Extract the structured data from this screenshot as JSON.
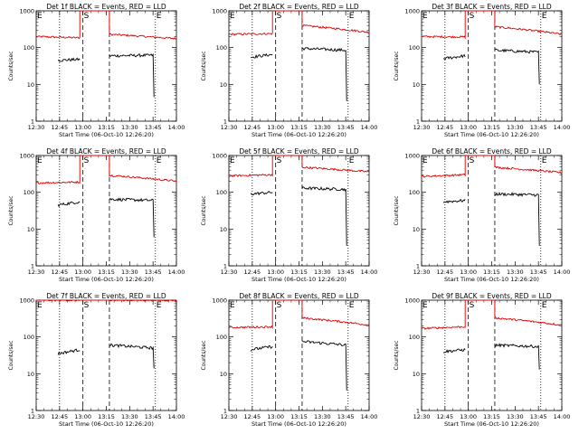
{
  "colors": {
    "events": "#000000",
    "lld": "#dd0000",
    "axis": "#000000"
  },
  "marker_labels": {
    "start": "S",
    "end": "E"
  },
  "chart_data": [
    {
      "type": "line",
      "title": "Det 1f BLACK = Events, RED = LLD",
      "xlabel": "Start Time (06-Oct-10 12:26:20)",
      "ylabel": "Counts/sec",
      "yscale": "log",
      "ylim": [
        1,
        1000
      ],
      "y_ticks": [
        1,
        10,
        100,
        1000
      ],
      "y_tick_labels": [
        "1",
        "10",
        "100",
        "1000"
      ],
      "xlim_minutes": [
        750,
        840
      ],
      "x_ticks": [
        750,
        765,
        780,
        795,
        810,
        825,
        840
      ],
      "x_tick_labels": [
        "12:30",
        "12:45",
        "13:00",
        "13:15",
        "13:30",
        "13:45",
        "14:00"
      ],
      "dotted_lines": [
        765,
        826.5
      ],
      "dashed_lines": [
        780,
        797
      ],
      "lld": {
        "segments": [
          [
            750,
            778,
            200,
            185
          ],
          [
            778,
            797,
            1000,
            1000
          ],
          [
            797,
            840,
            230,
            175
          ]
        ]
      },
      "events": {
        "segments": [
          [
            764,
            778,
            45,
            48
          ],
          [
            797,
            825,
            60,
            62
          ]
        ],
        "tail_end": 4.5
      }
    },
    {
      "type": "line",
      "title": "Det 2f BLACK = Events, RED = LLD",
      "xlabel": "Start Time (06-Oct-10 12:26:20)",
      "ylabel": "Counts/sec",
      "yscale": "log",
      "ylim": [
        1,
        1000
      ],
      "y_ticks": [
        1,
        10,
        100,
        1000
      ],
      "y_tick_labels": [
        "1",
        "10",
        "100",
        "1000"
      ],
      "xlim_minutes": [
        750,
        840
      ],
      "x_ticks": [
        750,
        765,
        780,
        795,
        810,
        825,
        840
      ],
      "x_tick_labels": [
        "12:30",
        "12:45",
        "13:00",
        "13:15",
        "13:30",
        "13:45",
        "14:00"
      ],
      "dotted_lines": [
        765,
        826.5
      ],
      "dashed_lines": [
        780,
        797
      ],
      "lld": {
        "segments": [
          [
            750,
            778,
            230,
            240
          ],
          [
            778,
            797,
            1000,
            1000
          ],
          [
            797,
            840,
            400,
            260
          ]
        ]
      },
      "events": {
        "segments": [
          [
            764,
            778,
            55,
            65
          ],
          [
            797,
            825,
            95,
            85
          ]
        ],
        "tail_end": 3.5
      }
    },
    {
      "type": "line",
      "title": "Det 3f BLACK = Events, RED = LLD",
      "xlabel": "Start Time (06-Oct-10 12:26:20)",
      "ylabel": "Counts/sec",
      "yscale": "log",
      "ylim": [
        1,
        1000
      ],
      "y_ticks": [
        1,
        10,
        100,
        1000
      ],
      "y_tick_labels": [
        "1",
        "10",
        "100",
        "1000"
      ],
      "xlim_minutes": [
        750,
        840
      ],
      "x_ticks": [
        750,
        765,
        780,
        795,
        810,
        825,
        840
      ],
      "x_tick_labels": [
        "12:30",
        "12:45",
        "13:00",
        "13:15",
        "13:30",
        "13:45",
        "14:00"
      ],
      "dotted_lines": [
        765,
        826.5
      ],
      "dashed_lines": [
        780,
        797
      ],
      "lld": {
        "segments": [
          [
            750,
            778,
            200,
            195
          ],
          [
            778,
            797,
            1000,
            1000
          ],
          [
            797,
            840,
            370,
            230
          ]
        ]
      },
      "events": {
        "segments": [
          [
            764,
            778,
            50,
            60
          ],
          [
            797,
            825,
            85,
            75
          ]
        ],
        "tail_end": 10
      }
    },
    {
      "type": "line",
      "title": "Det 4f BLACK = Events, RED = LLD",
      "xlabel": "Start Time (06-Oct-10 12:26:20)",
      "ylabel": "Counts/sec",
      "yscale": "log",
      "ylim": [
        1,
        1000
      ],
      "y_ticks": [
        1,
        10,
        100,
        1000
      ],
      "y_tick_labels": [
        "1",
        "10",
        "100",
        "1000"
      ],
      "xlim_minutes": [
        750,
        840
      ],
      "x_ticks": [
        750,
        765,
        780,
        795,
        810,
        825,
        840
      ],
      "x_tick_labels": [
        "12:30",
        "12:45",
        "13:00",
        "13:15",
        "13:30",
        "13:45",
        "14:00"
      ],
      "dotted_lines": [
        765,
        826.5
      ],
      "dashed_lines": [
        780,
        797
      ],
      "lld": {
        "segments": [
          [
            750,
            778,
            180,
            190
          ],
          [
            778,
            797,
            1000,
            1000
          ],
          [
            797,
            840,
            290,
            200
          ]
        ]
      },
      "events": {
        "segments": [
          [
            764,
            778,
            45,
            55
          ],
          [
            797,
            825,
            65,
            60
          ]
        ],
        "tail_end": 6
      }
    },
    {
      "type": "line",
      "title": "Det 5f BLACK = Events, RED = LLD",
      "xlabel": "Start Time (06-Oct-10 12:26:20)",
      "ylabel": "Counts/sec",
      "yscale": "log",
      "ylim": [
        1,
        1000
      ],
      "y_ticks": [
        1,
        10,
        100,
        1000
      ],
      "y_tick_labels": [
        "1",
        "10",
        "100",
        "1000"
      ],
      "xlim_minutes": [
        750,
        840
      ],
      "x_ticks": [
        750,
        765,
        780,
        795,
        810,
        825,
        840
      ],
      "x_tick_labels": [
        "12:30",
        "12:45",
        "13:00",
        "13:15",
        "13:30",
        "13:45",
        "14:00"
      ],
      "dotted_lines": [
        765,
        826.5
      ],
      "dashed_lines": [
        780,
        797
      ],
      "lld": {
        "segments": [
          [
            750,
            778,
            280,
            300
          ],
          [
            778,
            797,
            1000,
            1000
          ],
          [
            797,
            840,
            480,
            360
          ]
        ]
      },
      "events": {
        "segments": [
          [
            764,
            778,
            90,
            100
          ],
          [
            797,
            825,
            130,
            120
          ]
        ],
        "tail_end": 3.5
      }
    },
    {
      "type": "line",
      "title": "Det 6f BLACK = Events, RED = LLD",
      "xlabel": "Start Time (06-Oct-10 12:26:20)",
      "ylabel": "Counts/sec",
      "yscale": "log",
      "ylim": [
        1,
        1000
      ],
      "y_ticks": [
        1,
        10,
        100,
        1000
      ],
      "y_tick_labels": [
        "1",
        "10",
        "100",
        "1000"
      ],
      "xlim_minutes": [
        750,
        840
      ],
      "x_ticks": [
        750,
        765,
        780,
        795,
        810,
        825,
        840
      ],
      "x_tick_labels": [
        "12:30",
        "12:45",
        "13:00",
        "13:15",
        "13:30",
        "13:45",
        "14:00"
      ],
      "dotted_lines": [
        765,
        826.5
      ],
      "dashed_lines": [
        780,
        797
      ],
      "lld": {
        "segments": [
          [
            750,
            778,
            270,
            300
          ],
          [
            778,
            797,
            1000,
            1000
          ],
          [
            797,
            840,
            480,
            340
          ]
        ]
      },
      "events": {
        "segments": [
          [
            764,
            778,
            55,
            60
          ],
          [
            797,
            825,
            90,
            85
          ]
        ],
        "tail_end": 3.5
      }
    },
    {
      "type": "line",
      "title": "Det 7f BLACK = Events, RED = LLD",
      "xlabel": "Start Time (06-Oct-10 12:26:20)",
      "ylabel": "Counts/sec",
      "yscale": "log",
      "ylim": [
        1,
        1000
      ],
      "y_ticks": [
        1,
        10,
        100,
        1000
      ],
      "y_tick_labels": [
        "1",
        "10",
        "100",
        "1000"
      ],
      "xlim_minutes": [
        750,
        840
      ],
      "x_ticks": [
        750,
        765,
        780,
        795,
        810,
        825,
        840
      ],
      "x_tick_labels": [
        "12:30",
        "12:45",
        "13:00",
        "13:15",
        "13:30",
        "13:45",
        "14:00"
      ],
      "dotted_lines": [
        765,
        826.5
      ],
      "dashed_lines": [
        780,
        797
      ],
      "lld": {
        "segments": [
          [
            750,
            778,
            1000,
            1000
          ],
          [
            778,
            797,
            1000,
            1000
          ],
          [
            797,
            840,
            1000,
            1000
          ]
        ]
      },
      "events": {
        "segments": [
          [
            764,
            778,
            35,
            45
          ],
          [
            797,
            825,
            60,
            50
          ]
        ],
        "tail_end": 14
      }
    },
    {
      "type": "line",
      "title": "Det 8f BLACK = Events, RED = LLD",
      "xlabel": "Start Time (06-Oct-10 12:26:20)",
      "ylabel": "Counts/sec",
      "yscale": "log",
      "ylim": [
        1,
        1000
      ],
      "y_ticks": [
        1,
        10,
        100,
        1000
      ],
      "y_tick_labels": [
        "1",
        "10",
        "100",
        "1000"
      ],
      "xlim_minutes": [
        750,
        840
      ],
      "x_ticks": [
        750,
        765,
        780,
        795,
        810,
        825,
        840
      ],
      "x_tick_labels": [
        "12:30",
        "12:45",
        "13:00",
        "13:15",
        "13:30",
        "13:45",
        "14:00"
      ],
      "dotted_lines": [
        765,
        826.5
      ],
      "dashed_lines": [
        780,
        797
      ],
      "lld": {
        "segments": [
          [
            750,
            778,
            180,
            190
          ],
          [
            778,
            797,
            1000,
            1000
          ],
          [
            797,
            840,
            330,
            210
          ]
        ]
      },
      "events": {
        "segments": [
          [
            764,
            778,
            45,
            55
          ],
          [
            797,
            825,
            75,
            60
          ]
        ],
        "tail_end": 3.5
      }
    },
    {
      "type": "line",
      "title": "Det 9f BLACK = Events, RED = LLD",
      "xlabel": "Start Time (06-Oct-10 12:26:20)",
      "ylabel": "Counts/sec",
      "yscale": "log",
      "ylim": [
        1,
        1000
      ],
      "y_ticks": [
        1,
        10,
        100,
        1000
      ],
      "y_tick_labels": [
        "1",
        "10",
        "100",
        "1000"
      ],
      "xlim_minutes": [
        750,
        840
      ],
      "x_ticks": [
        750,
        765,
        780,
        795,
        810,
        825,
        840
      ],
      "x_tick_labels": [
        "12:30",
        "12:45",
        "13:00",
        "13:15",
        "13:30",
        "13:45",
        "14:00"
      ],
      "dotted_lines": [
        765,
        826.5
      ],
      "dashed_lines": [
        780,
        797
      ],
      "lld": {
        "segments": [
          [
            750,
            778,
            170,
            190
          ],
          [
            778,
            797,
            1000,
            1000
          ],
          [
            797,
            840,
            330,
            210
          ]
        ]
      },
      "events": {
        "segments": [
          [
            764,
            778,
            40,
            45
          ],
          [
            797,
            825,
            60,
            55
          ]
        ],
        "tail_end": 13
      }
    }
  ]
}
